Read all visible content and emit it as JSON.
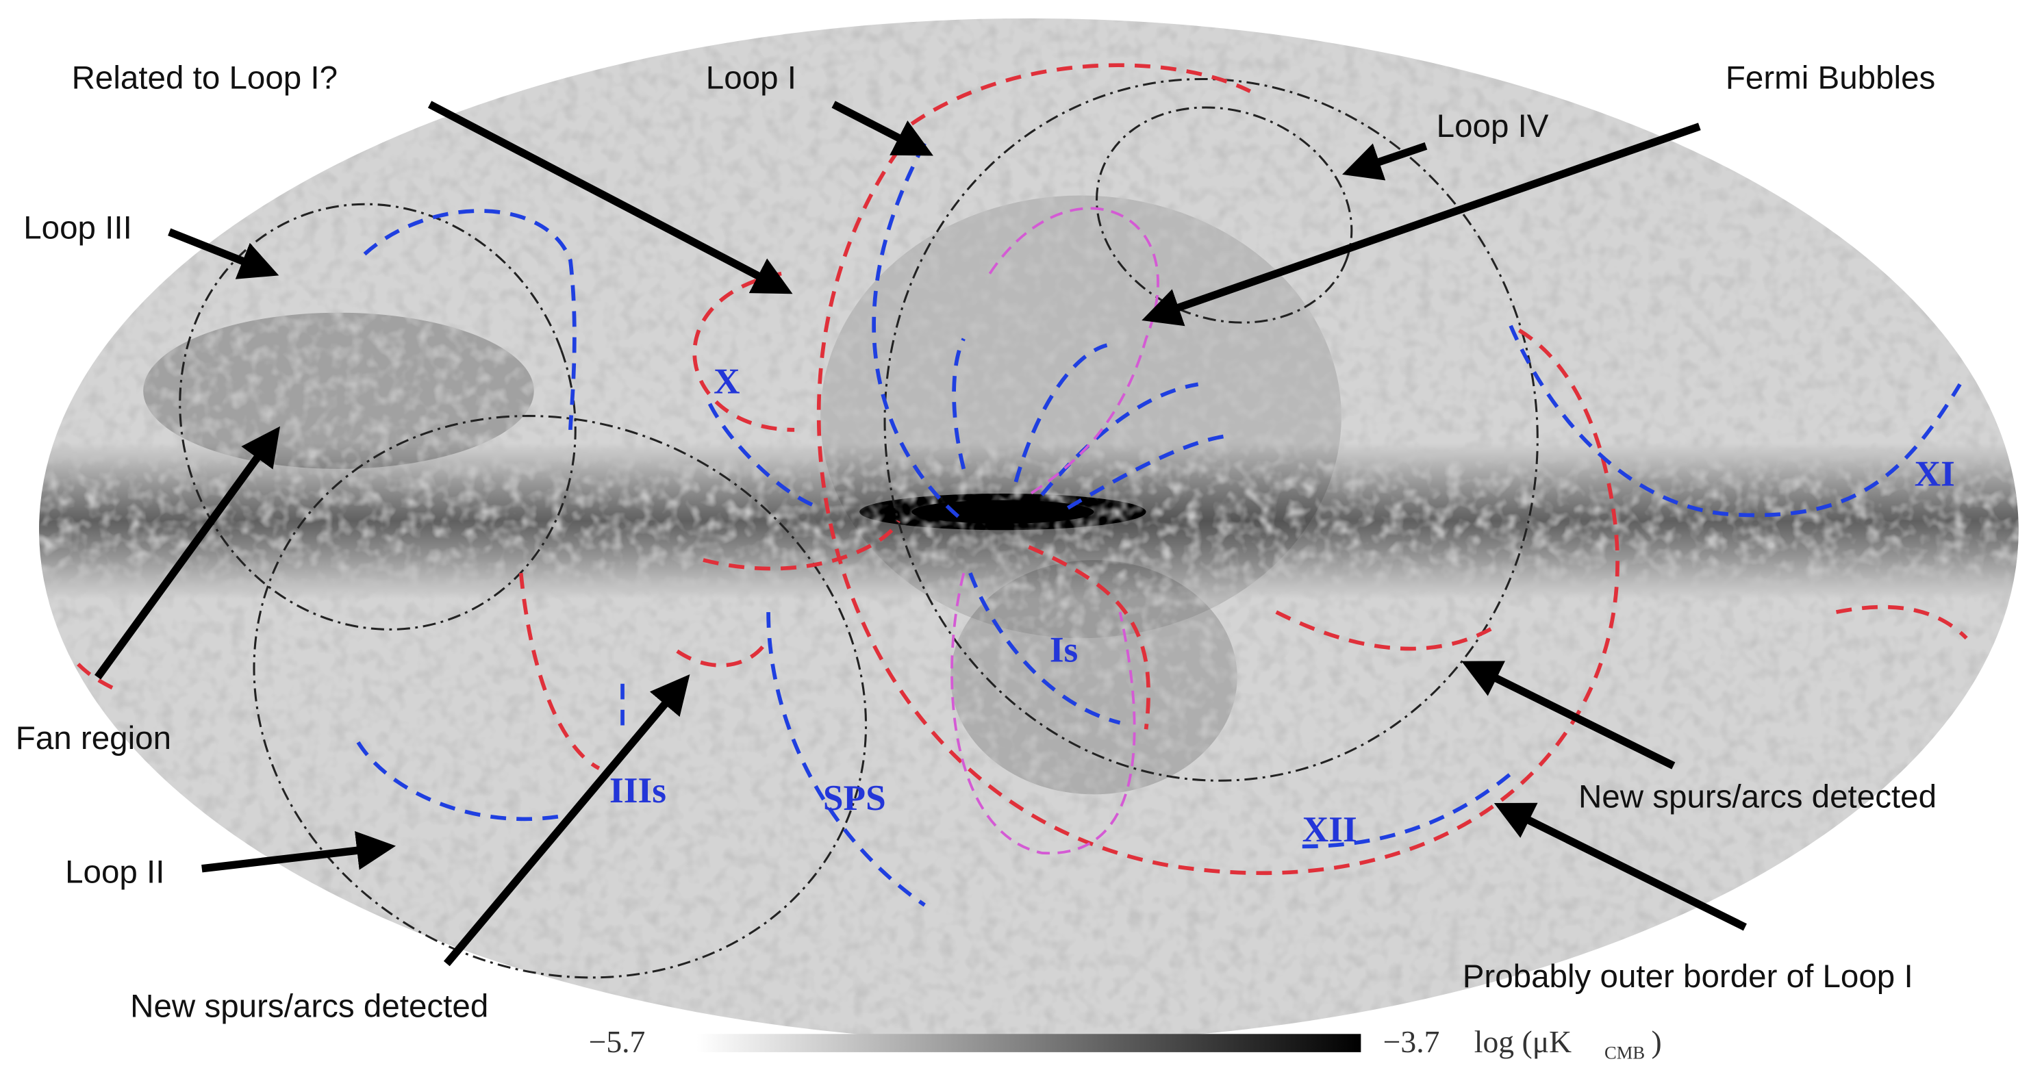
{
  "annotations": [
    {
      "label": "Related to Loop I?"
    },
    {
      "label": "Loop I"
    },
    {
      "label": "Fermi Bubbles"
    },
    {
      "label": "Loop IV"
    },
    {
      "label": "Loop III"
    },
    {
      "label": "Fan region"
    },
    {
      "label": "Loop II"
    },
    {
      "label": "New spurs/arcs detected"
    },
    {
      "label": "New spurs/arcs detected"
    },
    {
      "label": "Probably outer border of Loop I"
    }
  ],
  "map_labels": [
    "X",
    "XI",
    "XII",
    "Is",
    "IIIs",
    "SPS"
  ],
  "colorbar": {
    "min_label": "−5.7",
    "max_label": "−3.7",
    "unit": "log (μK",
    "unit_subscript": "CMB",
    "unit_close": ")"
  }
}
